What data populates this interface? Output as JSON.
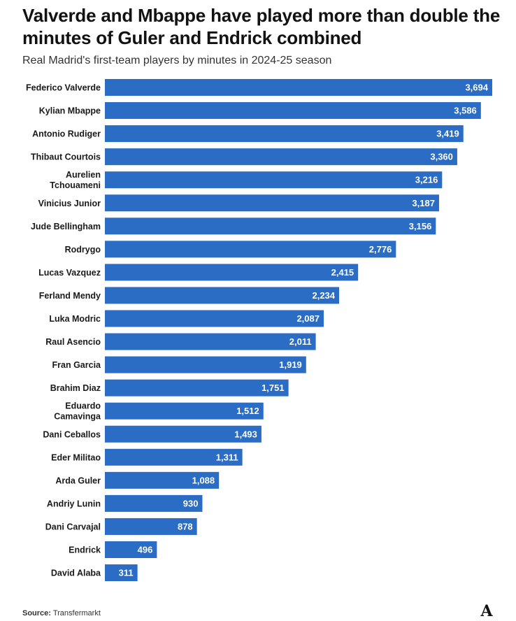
{
  "title": "Valverde and Mbappe have played more than double the minutes of Guler and Endrick combined",
  "subtitle": "Real Madrid's first-team players by minutes in 2024-25 season",
  "source": {
    "label": "Source:",
    "text": "Transfermarkt"
  },
  "logo": {
    "icon": "athletic-logo-icon",
    "text": "A"
  },
  "colors": {
    "bar": "#2b6cc4",
    "value_text": "#ffffff"
  },
  "chart_data": {
    "type": "bar",
    "orientation": "horizontal",
    "categories": [
      [
        "Federico Valverde"
      ],
      [
        "Kylian Mbappe"
      ],
      [
        "Antonio Rudiger"
      ],
      [
        "Thibaut Courtois"
      ],
      [
        "Aurelien",
        "Tchouameni"
      ],
      [
        "Vinicius Junior"
      ],
      [
        "Jude Bellingham"
      ],
      [
        "Rodrygo"
      ],
      [
        "Lucas Vazquez"
      ],
      [
        "Ferland Mendy"
      ],
      [
        "Luka Modric"
      ],
      [
        "Raul Asencio"
      ],
      [
        "Fran Garcia"
      ],
      [
        "Brahim Diaz"
      ],
      [
        "Eduardo",
        "Camavinga"
      ],
      [
        "Dani Ceballos"
      ],
      [
        "Eder Militao"
      ],
      [
        "Arda Guler"
      ],
      [
        "Andriy Lunin"
      ],
      [
        "Dani Carvajal"
      ],
      [
        "Endrick"
      ],
      [
        "David Alaba"
      ]
    ],
    "values": [
      3694,
      3586,
      3419,
      3360,
      3216,
      3187,
      3156,
      2776,
      2415,
      2234,
      2087,
      2011,
      1919,
      1751,
      1512,
      1493,
      1311,
      1088,
      930,
      878,
      496,
      311
    ],
    "value_labels": [
      "3,694",
      "3,586",
      "3,419",
      "3,360",
      "3,216",
      "3,187",
      "3,156",
      "2,776",
      "2,415",
      "2,234",
      "2,087",
      "2,011",
      "1,919",
      "1,751",
      "1,512",
      "1,493",
      "1,311",
      "1,088",
      "930",
      "878",
      "496",
      "311"
    ],
    "xlim": [
      0,
      3694
    ],
    "grid": false,
    "legend": "none"
  }
}
